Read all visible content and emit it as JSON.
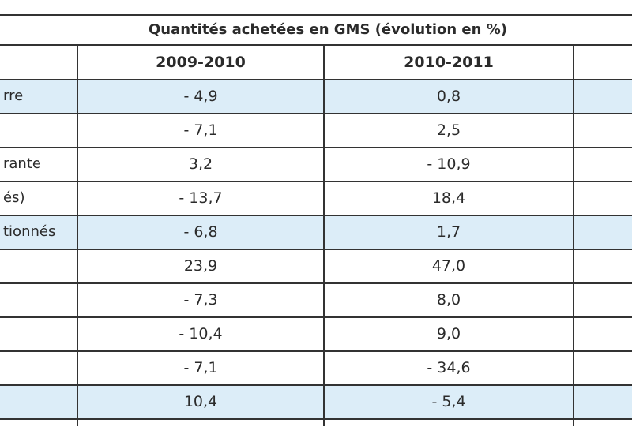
{
  "table": {
    "title": "Quantités achetées en GMS (évolution en %)",
    "headers": [
      "2009-2010",
      "2010-2011"
    ],
    "rows": [
      {
        "label": "rre",
        "v1": "- 4,9",
        "v2": "0,8",
        "highlight": true
      },
      {
        "label": "",
        "v1": "- 7,1",
        "v2": "2,5",
        "highlight": false
      },
      {
        "label": "rante",
        "v1": "3,2",
        "v2": "- 10,9",
        "highlight": false
      },
      {
        "label": "és)",
        "v1": "- 13,7",
        "v2": "18,4",
        "highlight": false
      },
      {
        "label": "tionnés",
        "v1": "- 6,8",
        "v2": "1,7",
        "highlight": true
      },
      {
        "label": "",
        "v1": "23,9",
        "v2": "47,0",
        "highlight": false
      },
      {
        "label": "",
        "v1": "- 7,3",
        "v2": "8,0",
        "highlight": false
      },
      {
        "label": "",
        "v1": "- 10,4",
        "v2": "9,0",
        "highlight": false
      },
      {
        "label": "",
        "v1": "- 7,1",
        "v2": "- 34,6",
        "highlight": false
      },
      {
        "label": "",
        "v1": "10,4",
        "v2": "- 5,4",
        "highlight": true
      }
    ]
  }
}
